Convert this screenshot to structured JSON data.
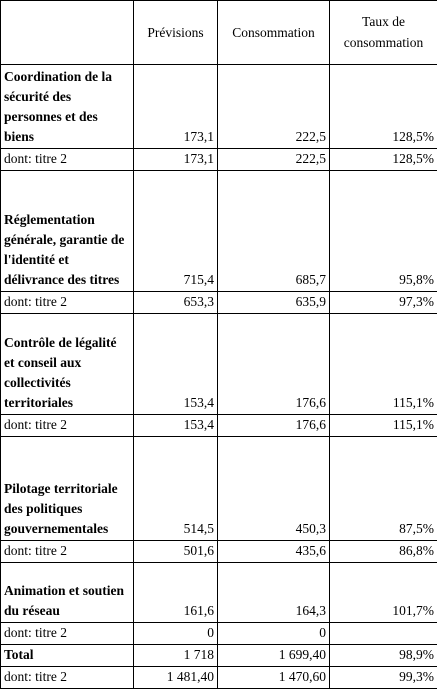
{
  "table": {
    "header": [
      "",
      "Prévisions",
      "Consommation",
      "Taux de consommation"
    ],
    "rows": [
      [
        "Coordination de la sécurité des personnes et des biens",
        "173,1",
        "222,5",
        "128,5%"
      ],
      [
        "dont: titre 2",
        "173,1",
        "222,5",
        "128,5%"
      ],
      [
        "Réglementation générale, garantie de l'identité et délivrance des titres",
        "715,4",
        "685,7",
        "95,8%"
      ],
      [
        "dont: titre 2",
        "653,3",
        "635,9",
        "97,3%"
      ],
      [
        "Contrôle de légalité et conseil aux collectivités territoriales",
        "153,4",
        "176,6",
        "115,1%"
      ],
      [
        "dont: titre 2",
        "153,4",
        "176,6",
        "115,1%"
      ],
      [
        "Pilotage territoriale des politiques gouvernementales",
        "514,5",
        "450,3",
        "87,5%"
      ],
      [
        "dont: titre 2",
        "501,6",
        "435,6",
        "86,8%"
      ],
      [
        "Animation et soutien du réseau",
        "161,6",
        "164,3",
        "101,7%"
      ],
      [
        "dont: titre 2",
        "0",
        "0",
        ""
      ],
      [
        "Total",
        "1 718",
        "1 699,40",
        "98,9%"
      ],
      [
        "dont: titre 2",
        "1 481,40",
        "1 470,60",
        "99,3%"
      ]
    ]
  }
}
